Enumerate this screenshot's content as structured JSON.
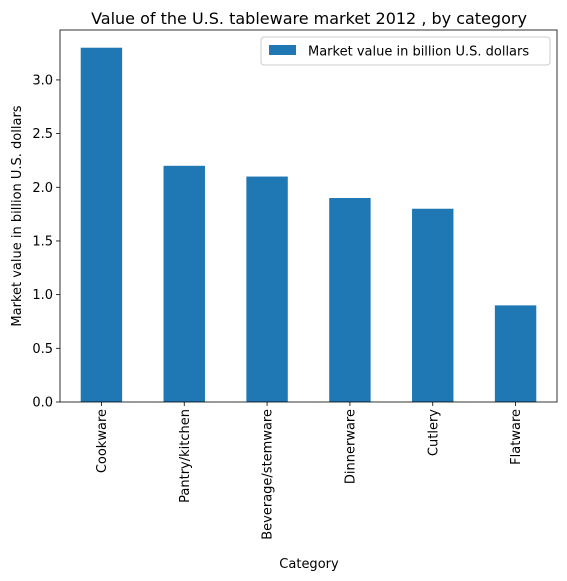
{
  "chart_data": {
    "type": "bar",
    "title": "Value of the U.S. tableware market 2012 , by category",
    "xlabel": "Category",
    "ylabel": "Market value in billion U.S. dollars",
    "categories": [
      "Cookware",
      "Pantry/kitchen",
      "Beverage/stemware",
      "Dinnerware",
      "Cutlery",
      "Flatware"
    ],
    "series": [
      {
        "name": "Market value in billion U.S. dollars",
        "values": [
          3.3,
          2.2,
          2.1,
          1.9,
          1.8,
          0.9
        ]
      }
    ],
    "ylim": [
      0,
      3.465
    ],
    "yticks": [
      0.0,
      0.5,
      1.0,
      1.5,
      2.0,
      2.5,
      3.0
    ],
    "ytick_labels": [
      "0.0",
      "0.5",
      "1.0",
      "1.5",
      "2.0",
      "2.5",
      "3.0"
    ],
    "grid": false,
    "legend_position": "top-right",
    "colors": {
      "bar": "#1f77b4",
      "axis": "#000000",
      "legend_border": "#cccccc"
    }
  }
}
